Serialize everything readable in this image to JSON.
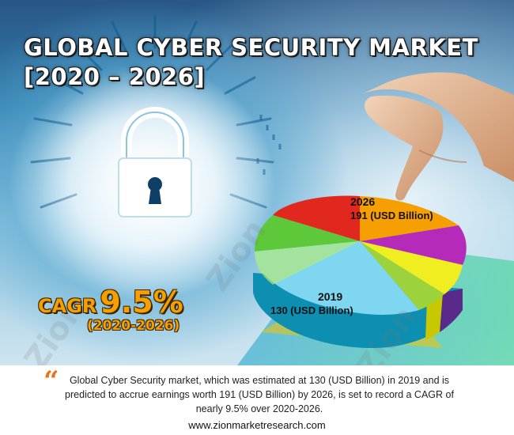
{
  "header": {
    "title_line1": "GLOBAL CYBER SECURITY MARKET",
    "title_line2": "[2020 – 2026]"
  },
  "cagr": {
    "label": "CAGR",
    "value": "9.5%",
    "period": "(2020-2026)"
  },
  "chart_data": {
    "type": "pie",
    "annotations": [
      {
        "year": "2026",
        "value": "191 (USD Billion)"
      },
      {
        "year": "2019",
        "value": "130 (USD Billion)"
      }
    ],
    "values_usd_billion": {
      "2019": 130,
      "2026": 191
    }
  },
  "summary": {
    "quote_glyph": "“",
    "text": "Global Cyber Security market, which was estimated at 130 (USD Billion) in 2019 and is predicted to accrue earnings worth 191 (USD Billion) by 2026, is set to record a CAGR of nearly 9.5% over 2020-2026."
  },
  "footer": {
    "website": "www.zionmarketresearch.com"
  },
  "watermark": {
    "text": "Zion"
  },
  "colors": {
    "accent_orange": "#f5a000",
    "quote_orange": "#e8741a"
  },
  "icons": [
    "padlock-icon",
    "pointing-hand-icon",
    "quote-icon"
  ]
}
